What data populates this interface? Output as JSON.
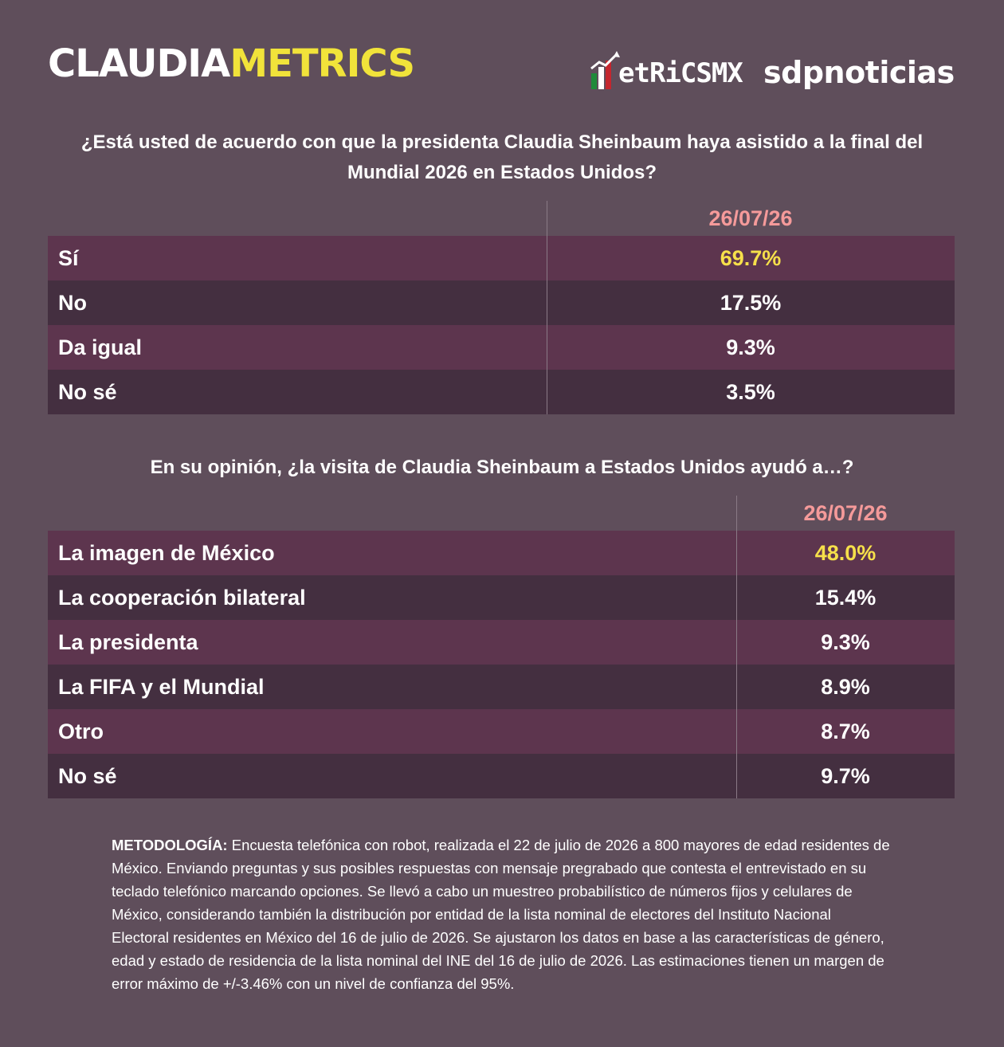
{
  "header": {
    "brand_left_part_a": "CLAUDIA",
    "brand_left_part_b": "METRICS",
    "logo_metrics": "etRiCSMX",
    "logo_sdp": "sdpnoticias"
  },
  "colors": {
    "background": "#5f4e5b",
    "row_odd": "#5d354e",
    "row_even": "#442f40",
    "date_color": "#f59a9a",
    "highlight_value": "#f6e04a",
    "brand_accent": "#f1e33a"
  },
  "chart_data": [
    {
      "type": "table",
      "title": "¿Está usted de acuerdo con que la presidenta Claudia Sheinbaum haya asistido a la final del Mundial 2026 en Estados Unidos?",
      "date": "26/07/26",
      "rows": [
        {
          "label": "Sí",
          "value": "69.7%"
        },
        {
          "label": "No",
          "value": "17.5%"
        },
        {
          "label": "Da igual",
          "value": "9.3%"
        },
        {
          "label": "No sé",
          "value": "3.5%"
        }
      ]
    },
    {
      "type": "table",
      "title": "En su opinión, ¿la visita de Claudia Sheinbaum a Estados Unidos ayudó a…?",
      "date": "26/07/26",
      "rows": [
        {
          "label": "La imagen de México",
          "value": "48.0%"
        },
        {
          "label": "La cooperación bilateral",
          "value": "15.4%"
        },
        {
          "label": "La presidenta",
          "value": "9.3%"
        },
        {
          "label": "La FIFA y el Mundial",
          "value": "8.9%"
        },
        {
          "label": "Otro",
          "value": "8.7%"
        },
        {
          "label": "No sé",
          "value": "9.7%"
        }
      ]
    }
  ],
  "methodology": {
    "title": "METODOLOGÍA:",
    "text": "Encuesta telefónica con robot, realizada el 22 de julio de 2026 a 800 mayores de edad residentes de México. Enviando preguntas y sus posibles respuestas con mensaje pregrabado que contesta el entrevistado en su teclado telefónico marcando opciones. Se llevó a cabo un muestreo probabilístico de números fijos y celulares de México, considerando también la distribución por entidad de la lista nominal de electores del Instituto Nacional Electoral residentes en México del 16 de julio de 2026. Se ajustaron los datos en base a las características de género, edad y estado de residencia de la lista nominal del INE del 16 de julio de 2026. Las estimaciones tienen un margen de error máximo de +/-3.46% con un nivel de confianza del 95%."
  }
}
